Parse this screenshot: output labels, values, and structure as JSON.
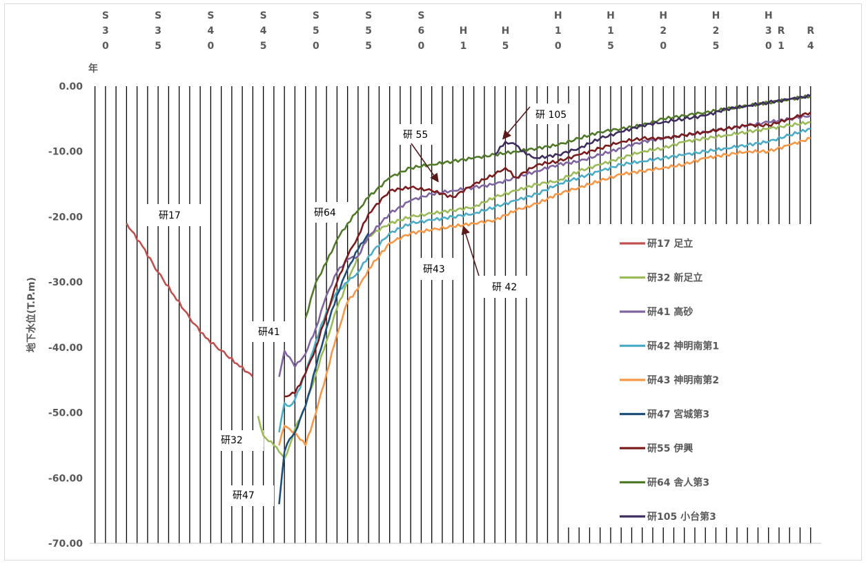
{
  "chart_data": {
    "type": "line",
    "xlabel": "年",
    "ylabel": "地下水位(T.P.m)",
    "ylim": [
      -70,
      0
    ],
    "y_ticks": [
      "0.00",
      "-10.00",
      "-20.00",
      "-30.00",
      "-40.00",
      "-50.00",
      "-60.00",
      "-70.00"
    ],
    "x_tick_labels": [
      {
        "year": 1955,
        "label": [
          "S",
          "3",
          "0"
        ]
      },
      {
        "year": 1960,
        "label": [
          "S",
          "3",
          "5"
        ]
      },
      {
        "year": 1965,
        "label": [
          "S",
          "4",
          "0"
        ]
      },
      {
        "year": 1970,
        "label": [
          "S",
          "4",
          "5"
        ]
      },
      {
        "year": 1975,
        "label": [
          "S",
          "5",
          "0"
        ]
      },
      {
        "year": 1980,
        "label": [
          "S",
          "5",
          "5"
        ]
      },
      {
        "year": 1985,
        "label": [
          "S",
          "6",
          "0"
        ]
      },
      {
        "year": 1989,
        "label": [
          "H",
          "1"
        ]
      },
      {
        "year": 1993,
        "label": [
          "H",
          "5"
        ]
      },
      {
        "year": 1998,
        "label": [
          "H",
          "1",
          "0"
        ]
      },
      {
        "year": 2003,
        "label": [
          "H",
          "1",
          "5"
        ]
      },
      {
        "year": 2008,
        "label": [
          "H",
          "2",
          "0"
        ]
      },
      {
        "year": 2013,
        "label": [
          "H",
          "2",
          "5"
        ]
      },
      {
        "year": 2018,
        "label": [
          "H",
          "3",
          "0"
        ]
      },
      {
        "year": 2019,
        "label": [
          "R",
          "1"
        ]
      },
      {
        "year": 2022,
        "label": [
          "R",
          "4"
        ]
      }
    ],
    "grid": "vertical year lines",
    "legend_placement": "right",
    "series": [
      {
        "name": "研17 足立",
        "color": "#c0504d",
        "x": [
          1957.0,
          1958.5,
          1960.0,
          1961.5,
          1963.0,
          1964.5,
          1966.0,
          1967.5,
          1969.0
        ],
        "y": [
          -21.0,
          -24.5,
          -28.5,
          -32.0,
          -35.5,
          -38.5,
          -40.5,
          -42.5,
          -44.5
        ]
      },
      {
        "name": "研32 新足立",
        "color": "#9bbb59",
        "x": [
          1969.5,
          1970.0,
          1971.0,
          1971.5,
          1972.0,
          1972.5,
          1973.0,
          1974.0,
          1975.0,
          1976.0,
          1977.0,
          1978.0,
          1979.0,
          1980.0,
          1982.0,
          1984.0,
          1986.0,
          1988.0,
          1990.0,
          1992.0,
          1994.0,
          1996.0,
          1998.0,
          2000.0,
          2002.0,
          2004.0,
          2006.0,
          2008.0,
          2010.0,
          2012.0,
          2014.0,
          2016.0,
          2018.0,
          2020.0,
          2022.0
        ],
        "y": [
          -50.5,
          -53.5,
          -55.0,
          -56.0,
          -57.0,
          -55.0,
          -52.5,
          -49.0,
          -44.0,
          -39.0,
          -34.0,
          -30.0,
          -26.0,
          -23.0,
          -21.0,
          -20.0,
          -19.5,
          -19.0,
          -18.5,
          -17.0,
          -16.0,
          -15.0,
          -14.5,
          -13.0,
          -12.0,
          -11.0,
          -10.0,
          -9.5,
          -8.5,
          -8.0,
          -7.5,
          -7.0,
          -6.5,
          -6.0,
          -5.5
        ]
      },
      {
        "name": "研41 高砂",
        "color": "#8064a2",
        "x": [
          1971.5,
          1972.0,
          1972.5,
          1973.0,
          1974.0,
          1975.0,
          1976.0,
          1977.0,
          1978.0,
          1979.0,
          1980.0,
          1982.0,
          1984.0,
          1986.0,
          1988.0,
          1990.0,
          1992.0,
          1994.0,
          1996.0,
          1998.0,
          2000.0,
          2002.0,
          2004.0,
          2006.0,
          2008.0,
          2010.0,
          2012.0,
          2014.0,
          2016.0,
          2018.0,
          2020.0,
          2022.0
        ],
        "y": [
          -44.5,
          -40.5,
          -41.5,
          -43.0,
          -41.0,
          -37.0,
          -32.0,
          -28.5,
          -26.5,
          -26.0,
          -23.0,
          -19.5,
          -17.5,
          -16.5,
          -16.0,
          -15.5,
          -15.0,
          -14.0,
          -13.0,
          -12.0,
          -11.5,
          -10.5,
          -9.5,
          -8.5,
          -8.0,
          -7.5,
          -7.0,
          -6.5,
          -6.0,
          -5.5,
          -5.0,
          -4.5
        ]
      },
      {
        "name": "研42 神明南第1",
        "color": "#4bacc6",
        "x": [
          1971.5,
          1972.0,
          1972.5,
          1973.0,
          1974.0,
          1975.0,
          1976.0,
          1977.0,
          1978.0,
          1979.0,
          1980.0,
          1982.0,
          1984.0,
          1986.0,
          1988.0,
          1990.0,
          1992.0,
          1994.0,
          1996.0,
          1998.0,
          2000.0,
          2002.0,
          2004.0,
          2006.0,
          2008.0,
          2010.0,
          2012.0,
          2014.0,
          2016.0,
          2018.0,
          2020.0,
          2022.0
        ],
        "y": [
          -53.0,
          -48.5,
          -49.0,
          -48.0,
          -44.0,
          -39.0,
          -34.5,
          -31.5,
          -30.0,
          -28.5,
          -26.0,
          -22.5,
          -21.0,
          -20.5,
          -20.0,
          -19.5,
          -18.5,
          -17.5,
          -16.5,
          -15.0,
          -14.0,
          -13.0,
          -12.0,
          -11.5,
          -11.0,
          -10.5,
          -10.0,
          -9.5,
          -9.0,
          -8.5,
          -7.5,
          -6.5
        ]
      },
      {
        "name": "研43 神明南第2",
        "color": "#f79646",
        "x": [
          1971.5,
          1972.0,
          1972.5,
          1973.0,
          1974.0,
          1975.0,
          1976.0,
          1977.0,
          1978.0,
          1979.0,
          1980.0,
          1982.0,
          1984.0,
          1986.0,
          1988.0,
          1990.0,
          1992.0,
          1994.0,
          1996.0,
          1998.0,
          2000.0,
          2002.0,
          2004.0,
          2006.0,
          2008.0,
          2010.0,
          2012.0,
          2014.0,
          2016.0,
          2018.0,
          2020.0,
          2022.0
        ],
        "y": [
          -55.0,
          -52.0,
          -52.5,
          -53.0,
          -55.0,
          -50.0,
          -44.0,
          -38.0,
          -33.0,
          -31.0,
          -28.0,
          -24.0,
          -22.5,
          -22.0,
          -21.5,
          -21.0,
          -20.5,
          -19.0,
          -18.0,
          -16.5,
          -15.5,
          -14.5,
          -13.5,
          -13.0,
          -12.5,
          -12.0,
          -11.0,
          -10.5,
          -10.0,
          -10.0,
          -9.0,
          -8.0
        ]
      },
      {
        "name": "研47 宮城第3",
        "color": "#1f4e79",
        "x": [
          1971.5,
          1972.0,
          1972.5,
          1973.0,
          1974.0,
          1975.0,
          1976.0,
          1977.0,
          1978.0,
          1979.0,
          1980.0
        ],
        "y": [
          -64.0,
          -56.0,
          -54.0,
          -53.0,
          -49.0,
          -43.0,
          -37.0,
          -32.0,
          -28.0,
          -25.0,
          -22.5
        ]
      },
      {
        "name": "研55 伊興",
        "color": "#7b1c1c",
        "x": [
          1972.0,
          1973.0,
          1974.0,
          1975.0,
          1976.0,
          1977.0,
          1978.0,
          1979.0,
          1980.0,
          1982.0,
          1984.0,
          1986.0,
          1988.0,
          1990.0,
          1992.0,
          1993.0,
          1994.0,
          1996.0,
          1998.0,
          2000.0,
          2002.0,
          2004.0,
          2006.0,
          2008.0,
          2010.0,
          2012.0,
          2014.0,
          2016.0,
          2018.0,
          2020.0,
          2022.0
        ],
        "y": [
          -47.5,
          -47.0,
          -44.0,
          -40.0,
          -35.0,
          -30.0,
          -26.0,
          -23.0,
          -19.5,
          -16.0,
          -15.5,
          -16.0,
          -17.0,
          -15.0,
          -13.5,
          -12.5,
          -14.0,
          -12.0,
          -11.5,
          -10.5,
          -9.5,
          -8.5,
          -8.0,
          -8.0,
          -7.5,
          -7.0,
          -6.5,
          -6.0,
          -6.0,
          -5.0,
          -4.0
        ]
      },
      {
        "name": "研64 舎人第3",
        "color": "#4f7a28",
        "x": [
          1974.0,
          1975.0,
          1976.0,
          1977.0,
          1978.0,
          1979.0,
          1980.0,
          1982.0,
          1984.0,
          1986.0,
          1988.0,
          1990.0,
          1992.0,
          1994.0,
          1996.0,
          1998.0,
          2000.0,
          2002.0,
          2004.0,
          2006.0,
          2008.0,
          2010.0,
          2012.0,
          2014.0,
          2016.0,
          2018.0,
          2020.0,
          2022.0
        ],
        "y": [
          -35.5,
          -30.0,
          -27.0,
          -23.5,
          -21.0,
          -19.0,
          -17.0,
          -14.0,
          -12.5,
          -12.0,
          -11.5,
          -11.0,
          -10.5,
          -10.0,
          -9.5,
          -9.0,
          -8.0,
          -7.0,
          -6.5,
          -6.0,
          -5.0,
          -4.5,
          -4.0,
          -3.5,
          -3.0,
          -2.5,
          -2.0,
          -1.5
        ]
      },
      {
        "name": "研105 小台第3",
        "color": "#3f2d5e",
        "x": [
          1992.0,
          1993.0,
          1994.0,
          1995.0,
          1996.0,
          1998.0,
          2000.0,
          2002.0,
          2004.0,
          2006.0,
          2008.0,
          2010.0,
          2012.0,
          2014.0,
          2016.0,
          2018.0,
          2020.0,
          2022.0
        ],
        "y": [
          -10.5,
          -8.5,
          -9.0,
          -10.5,
          -11.0,
          -10.5,
          -9.5,
          -8.0,
          -7.0,
          -6.0,
          -5.5,
          -5.0,
          -4.5,
          -3.5,
          -3.0,
          -2.5,
          -2.0,
          -1.5
        ]
      }
    ],
    "annotations": [
      {
        "text": "研17"
      },
      {
        "text": "研32"
      },
      {
        "text": "研41"
      },
      {
        "text": "研43"
      },
      {
        "text": "研47"
      },
      {
        "text": "研64"
      },
      {
        "text": "研 55"
      },
      {
        "text": "研 105"
      },
      {
        "text": "研 42"
      }
    ]
  }
}
